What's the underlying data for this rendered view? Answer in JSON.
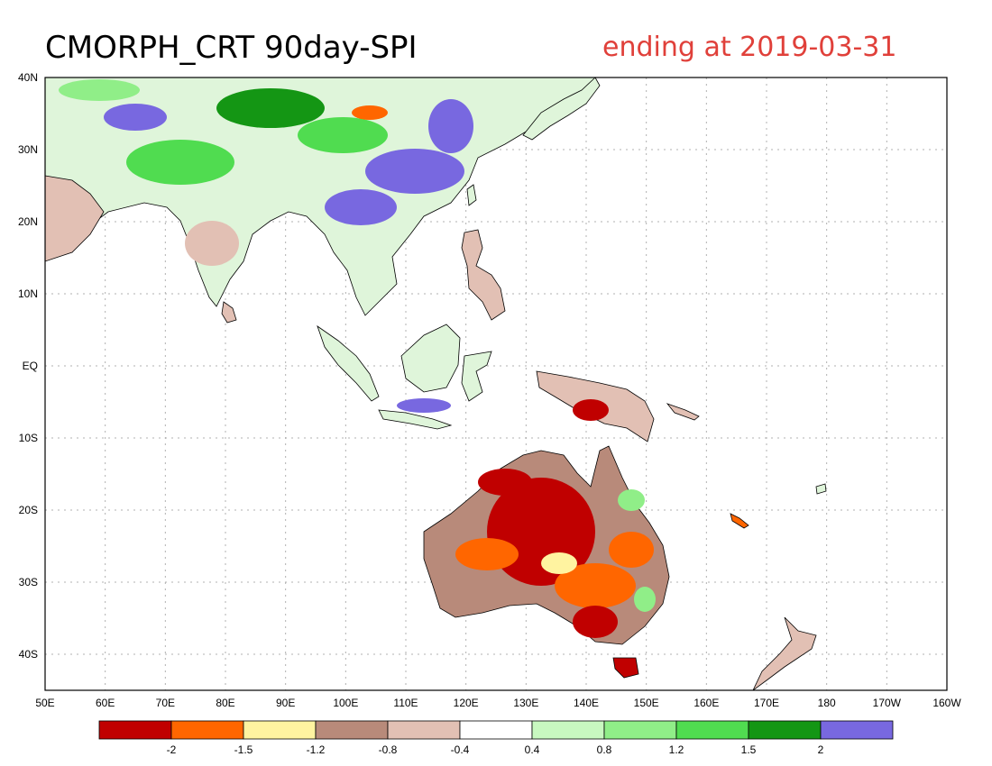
{
  "title": "CMORPH_CRT 90day-SPI",
  "subtitle": "ending at 2019-03-31",
  "colors": {
    "title": "#000000",
    "subtitle": "#e0403a",
    "grid": "#b0b0b0",
    "coast": "#000000"
  },
  "map": {
    "lon_range": [
      50,
      200
    ],
    "lat_range": [
      -45,
      40
    ],
    "x_ticks": [
      "50E",
      "60E",
      "70E",
      "80E",
      "90E",
      "100E",
      "110E",
      "120E",
      "130E",
      "140E",
      "150E",
      "160E",
      "170E",
      "180",
      "170W",
      "160W"
    ],
    "y_ticks": [
      "40N",
      "30N",
      "20N",
      "10N",
      "EQ",
      "10S",
      "20S",
      "30S",
      "40S"
    ]
  },
  "colorbar": {
    "colors": [
      "#c00000",
      "#ff6600",
      "#fff3a0",
      "#b88a7a",
      "#e2c0b4",
      "#ffffff",
      "#c8f8c0",
      "#90ee88",
      "#50dc50",
      "#149614",
      "#7868e0"
    ],
    "labels": [
      "-2",
      "-1.5",
      "-1.2",
      "-0.8",
      "-0.4",
      "0.4",
      "0.8",
      "1.2",
      "1.5",
      "2"
    ]
  }
}
